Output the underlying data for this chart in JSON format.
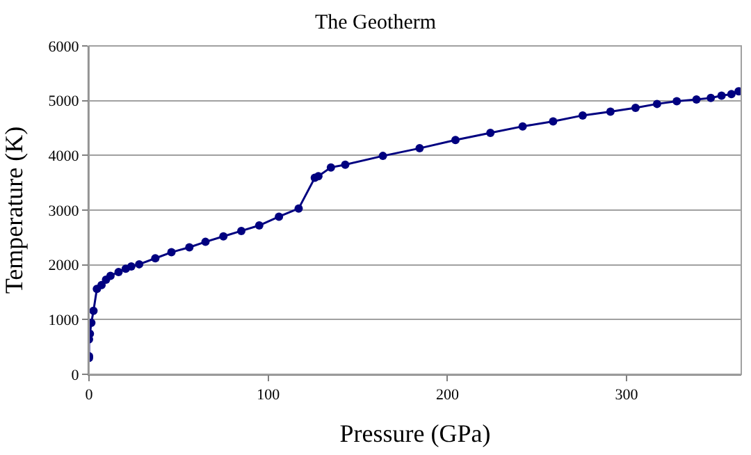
{
  "chart_data": {
    "type": "line",
    "title": "The Geotherm",
    "xlabel": "Pressure (GPa)",
    "ylabel": "Temperature (K)",
    "x": [
      0,
      0,
      0,
      0.5,
      1.3,
      2.5,
      4.4,
      7,
      9.5,
      12,
      16.5,
      20.5,
      23.6,
      28,
      37,
      46,
      56,
      65,
      75,
      85,
      95,
      106,
      117,
      126,
      128,
      135,
      143,
      164,
      184.5,
      204.5,
      224,
      242,
      259,
      275.5,
      291,
      305,
      317,
      328,
      339,
      347,
      353,
      358.5,
      362.5
    ],
    "series": [
      {
        "color": "#000080",
        "values": [
          300,
          330,
          640,
          740,
          940,
          1160,
          1560,
          1630,
          1730,
          1800,
          1870,
          1930,
          1970,
          2010,
          2120,
          2230,
          2320,
          2420,
          2520,
          2620,
          2720,
          2880,
          3030,
          3590,
          3620,
          3780,
          3830,
          3990,
          4130,
          4280,
          4410,
          4530,
          4620,
          4730,
          4800,
          4870,
          4940,
          4990,
          5020,
          5050,
          5090,
          5120,
          5170
        ]
      }
    ],
    "xlim": [
      0,
      364
    ],
    "xticks": [
      0,
      100,
      200,
      300
    ],
    "ylim": [
      0,
      6000
    ],
    "yticks": [
      0,
      1000,
      2000,
      3000,
      4000,
      5000,
      6000
    ],
    "grid": "y",
    "marker": "circle",
    "line_style": "solid"
  }
}
